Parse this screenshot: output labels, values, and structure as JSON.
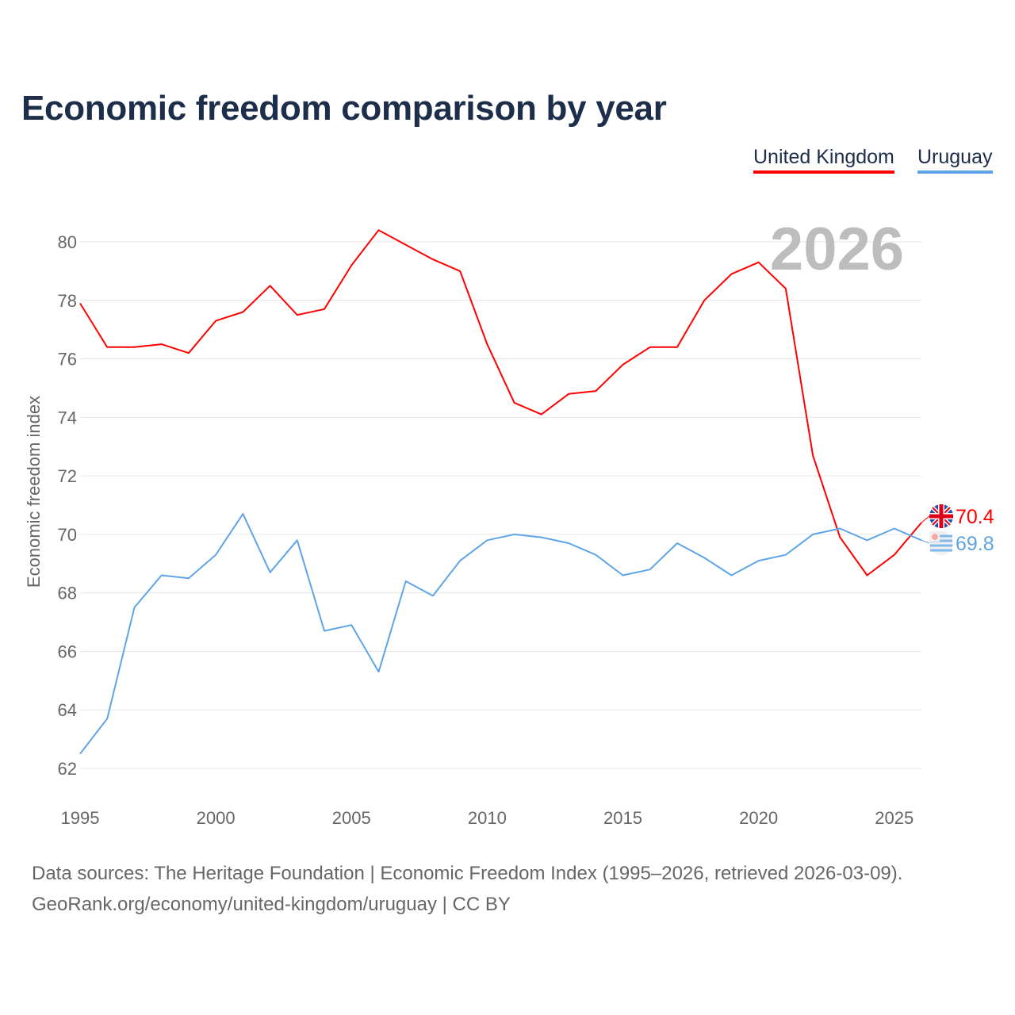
{
  "chart_data": {
    "type": "line",
    "title": "Economic freedom comparison by year",
    "xlabel": "",
    "ylabel": "Economic freedom index",
    "xlim": [
      1995,
      2026
    ],
    "ylim": [
      62,
      80
    ],
    "xticks": [
      1995,
      2000,
      2005,
      2010,
      2015,
      2020,
      2025
    ],
    "yticks": [
      62,
      64,
      66,
      68,
      70,
      72,
      74,
      76,
      78,
      80
    ],
    "grid": true,
    "legend_position": "top-right",
    "year_watermark": "2026",
    "x": [
      1995,
      1996,
      1997,
      1998,
      1999,
      2000,
      2001,
      2002,
      2003,
      2004,
      2005,
      2006,
      2007,
      2008,
      2009,
      2010,
      2011,
      2012,
      2013,
      2014,
      2015,
      2016,
      2017,
      2018,
      2019,
      2020,
      2021,
      2022,
      2023,
      2024,
      2025,
      2026
    ],
    "series": [
      {
        "name": "United Kingdom",
        "color": "#ff0000",
        "end_label": "70.4",
        "values": [
          77.9,
          76.4,
          76.4,
          76.5,
          76.2,
          77.3,
          77.6,
          78.5,
          77.5,
          77.7,
          79.2,
          80.4,
          79.9,
          79.4,
          79.0,
          76.5,
          74.5,
          74.1,
          74.8,
          74.9,
          75.8,
          76.4,
          76.4,
          78.0,
          78.9,
          79.3,
          78.4,
          72.7,
          69.9,
          68.6,
          69.3,
          70.4
        ]
      },
      {
        "name": "Uruguay",
        "color": "#5ea5e8",
        "end_label": "69.8",
        "values": [
          62.5,
          63.7,
          67.5,
          68.6,
          68.5,
          69.3,
          70.7,
          68.7,
          69.8,
          66.7,
          66.9,
          65.3,
          68.4,
          67.9,
          69.1,
          69.8,
          70.0,
          69.9,
          69.7,
          69.3,
          68.6,
          68.8,
          69.7,
          69.2,
          68.6,
          69.1,
          69.3,
          70.0,
          70.2,
          69.8,
          70.2,
          69.8
        ]
      }
    ]
  },
  "footer": {
    "line1": "Data sources: The Heritage Foundation | Economic Freedom Index (1995–2026, retrieved 2026-03-09).",
    "line2": "GeoRank.org/economy/united-kingdom/uruguay | CC BY"
  }
}
